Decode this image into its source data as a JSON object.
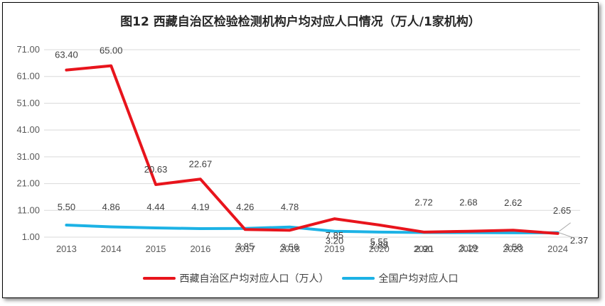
{
  "colors": {
    "series_tibet": "#e8141c",
    "series_national": "#1cb2e5",
    "grid": "#d9d9d9",
    "leader": "#a6a6a6"
  },
  "chart_data": {
    "type": "line",
    "title": "图12  西藏自治区检验检测机构户均对应人口情况（万人/1家机构）",
    "categories": [
      "2013",
      "2014",
      "2015",
      "2016",
      "2017",
      "2018",
      "2019",
      "2020",
      "2021",
      "2022",
      "2023",
      "2024"
    ],
    "y_ticks": [
      "1.00",
      "11.00",
      "21.00",
      "31.00",
      "41.00",
      "51.00",
      "61.00",
      "71.00"
    ],
    "ylim": [
      1,
      71
    ],
    "grid": true,
    "legend_position": "bottom",
    "series": [
      {
        "name": "西藏自治区户均对应人口（万人）",
        "values": [
          63.4,
          65.0,
          20.63,
          22.67,
          3.85,
          3.56,
          7.85,
          5.55,
          2.9,
          3.19,
          3.58,
          2.37
        ],
        "labels": [
          "63.40",
          "65.00",
          "20.63",
          "22.67",
          "3.85",
          "3.56",
          "7.85",
          "5.55",
          "2.90",
          "3.19",
          "3.58",
          "2.37"
        ]
      },
      {
        "name": "全国户均对应人口",
        "values": [
          5.5,
          4.86,
          4.44,
          4.19,
          4.26,
          4.78,
          3.2,
          2.89,
          2.72,
          2.68,
          2.62,
          2.65
        ],
        "labels": [
          "5.50",
          "4.86",
          "4.44",
          "4.19",
          "4.26",
          "4.78",
          "3.20",
          "2.89",
          "2.72",
          "2.68",
          "2.62",
          "2.65"
        ]
      }
    ]
  }
}
